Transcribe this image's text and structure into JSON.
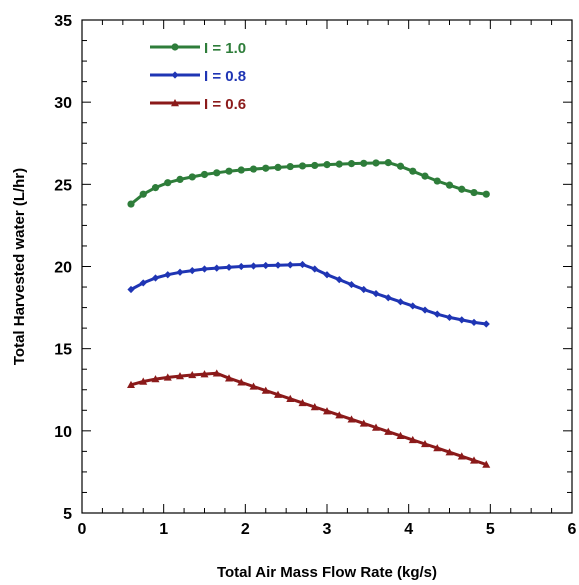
{
  "chart_data": {
    "type": "line",
    "xlabel": "Total Air Mass Flow Rate (kg/s)",
    "ylabel": "Total Harvested water (L/hr)",
    "xlim": [
      0,
      6
    ],
    "ylim": [
      5,
      35
    ],
    "x_ticks": [
      0,
      1,
      2,
      3,
      4,
      5,
      6
    ],
    "y_ticks": [
      5,
      10,
      15,
      20,
      25,
      30,
      35
    ],
    "grid": false,
    "legend_position": "top-left",
    "x": [
      0.6,
      0.75,
      0.9,
      1.05,
      1.2,
      1.35,
      1.5,
      1.65,
      1.8,
      1.95,
      2.1,
      2.25,
      2.4,
      2.55,
      2.7,
      2.85,
      3.0,
      3.15,
      3.3,
      3.45,
      3.6,
      3.75,
      3.9,
      4.05,
      4.2,
      4.35,
      4.5,
      4.65,
      4.8,
      4.95
    ],
    "series": [
      {
        "name": "I = 1.0",
        "color": "#2e7d3a",
        "marker": "circle",
        "values": [
          23.8,
          24.4,
          24.8,
          25.1,
          25.3,
          25.45,
          25.6,
          25.7,
          25.8,
          25.87,
          25.93,
          25.98,
          26.03,
          26.08,
          26.12,
          26.15,
          26.2,
          26.23,
          26.26,
          26.28,
          26.3,
          26.32,
          26.1,
          25.8,
          25.5,
          25.2,
          24.95,
          24.7,
          24.5,
          24.4
        ]
      },
      {
        "name": "I = 0.8",
        "color": "#1f35b4",
        "marker": "diamond",
        "values": [
          18.6,
          19.0,
          19.3,
          19.5,
          19.65,
          19.75,
          19.85,
          19.9,
          19.95,
          20.0,
          20.03,
          20.06,
          20.08,
          20.1,
          20.12,
          19.85,
          19.5,
          19.2,
          18.9,
          18.6,
          18.35,
          18.1,
          17.85,
          17.6,
          17.35,
          17.1,
          16.9,
          16.75,
          16.6,
          16.5
        ]
      },
      {
        "name": "I = 0.6",
        "color": "#8b1a1a",
        "marker": "triangle",
        "values": [
          12.8,
          13.0,
          13.15,
          13.25,
          13.33,
          13.4,
          13.45,
          13.5,
          13.2,
          12.95,
          12.7,
          12.45,
          12.2,
          11.95,
          11.7,
          11.45,
          11.2,
          10.95,
          10.7,
          10.45,
          10.2,
          9.95,
          9.7,
          9.45,
          9.2,
          8.95,
          8.7,
          8.45,
          8.2,
          7.95
        ]
      }
    ]
  }
}
